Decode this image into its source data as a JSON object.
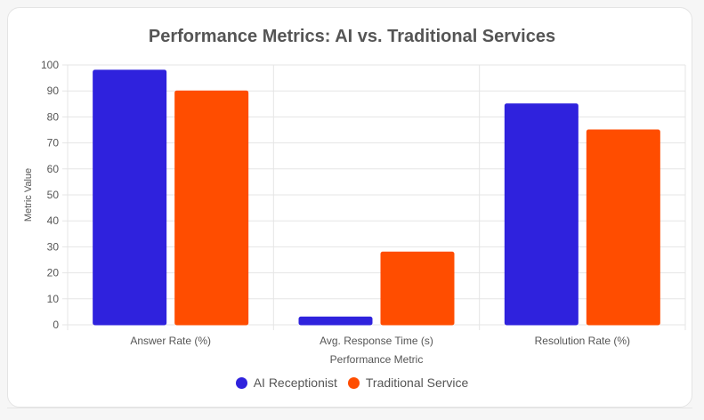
{
  "chart_data": {
    "type": "bar",
    "title": "Performance Metrics: AI vs. Traditional Services",
    "xlabel": "Performance Metric",
    "ylabel": "Metric Value",
    "categories": [
      "Answer Rate (%)",
      "Avg. Response Time (s)",
      "Resolution Rate (%)"
    ],
    "series": [
      {
        "name": "AI Receptionist",
        "values": [
          98,
          3,
          85
        ],
        "color": "#2f22dd"
      },
      {
        "name": "Traditional Service",
        "values": [
          90,
          28,
          75
        ],
        "color": "#ff4d00"
      }
    ],
    "ylim": [
      0,
      100
    ],
    "yticks": [
      "0",
      "10",
      "20",
      "30",
      "40",
      "50",
      "60",
      "70",
      "80",
      "90",
      "100"
    ],
    "grid": true,
    "legend_position": "bottom-center"
  }
}
